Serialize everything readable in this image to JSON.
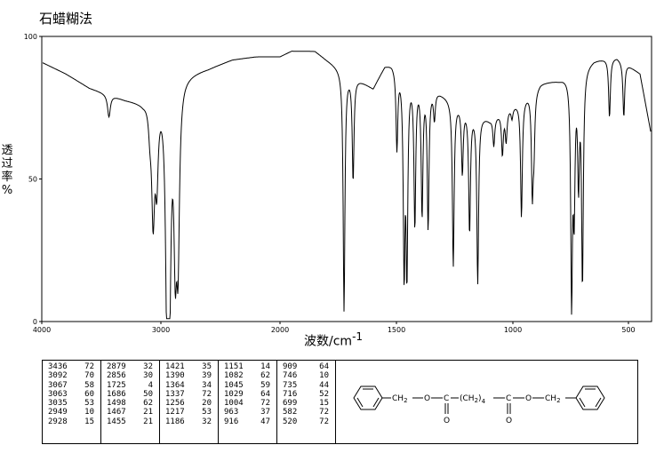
{
  "method_title": "石蜡糊法",
  "chart_data": {
    "type": "line",
    "title": "石蜡糊法",
    "xlabel": "波数/cm",
    "xlabel_superscript": "-1",
    "ylabel": [
      "透",
      "过",
      "率",
      "%"
    ],
    "xlim": [
      4000,
      400
    ],
    "ylim": [
      0,
      100
    ],
    "x_ticks": [
      4000,
      3000,
      2000,
      1500,
      1000,
      500
    ],
    "y_ticks": [
      0,
      50,
      100
    ],
    "grid": false,
    "line_color": "#000000",
    "peaks": [
      {
        "x": 3436,
        "y": 72
      },
      {
        "x": 3092,
        "y": 70
      },
      {
        "x": 3067,
        "y": 58
      },
      {
        "x": 3063,
        "y": 60
      },
      {
        "x": 3035,
        "y": 53
      },
      {
        "x": 2949,
        "y": 10
      },
      {
        "x": 2928,
        "y": 15
      },
      {
        "x": 2879,
        "y": 32
      },
      {
        "x": 2856,
        "y": 30
      },
      {
        "x": 1725,
        "y": 4
      },
      {
        "x": 1686,
        "y": 50
      },
      {
        "x": 1498,
        "y": 62
      },
      {
        "x": 1467,
        "y": 21
      },
      {
        "x": 1455,
        "y": 21
      },
      {
        "x": 1421,
        "y": 35
      },
      {
        "x": 1390,
        "y": 39
      },
      {
        "x": 1364,
        "y": 34
      },
      {
        "x": 1337,
        "y": 72
      },
      {
        "x": 1256,
        "y": 20
      },
      {
        "x": 1217,
        "y": 53
      },
      {
        "x": 1186,
        "y": 32
      },
      {
        "x": 1151,
        "y": 14
      },
      {
        "x": 1082,
        "y": 62
      },
      {
        "x": 1045,
        "y": 59
      },
      {
        "x": 1029,
        "y": 64
      },
      {
        "x": 1004,
        "y": 72
      },
      {
        "x": 963,
        "y": 37
      },
      {
        "x": 916,
        "y": 47
      },
      {
        "x": 909,
        "y": 64
      },
      {
        "x": 746,
        "y": 10
      },
      {
        "x": 735,
        "y": 44
      },
      {
        "x": 716,
        "y": 52
      },
      {
        "x": 699,
        "y": 15
      },
      {
        "x": 582,
        "y": 72
      },
      {
        "x": 520,
        "y": 72
      }
    ],
    "baseline": [
      {
        "x": 4000,
        "y": 91
      },
      {
        "x": 3800,
        "y": 87
      },
      {
        "x": 3600,
        "y": 82
      },
      {
        "x": 3300,
        "y": 78
      },
      {
        "x": 3150,
        "y": 77
      },
      {
        "x": 2800,
        "y": 87
      },
      {
        "x": 2600,
        "y": 89
      },
      {
        "x": 2400,
        "y": 92
      },
      {
        "x": 2200,
        "y": 93
      },
      {
        "x": 2000,
        "y": 93
      },
      {
        "x": 1950,
        "y": 95
      },
      {
        "x": 1850,
        "y": 95
      },
      {
        "x": 1800,
        "y": 92
      },
      {
        "x": 1600,
        "y": 82
      },
      {
        "x": 1550,
        "y": 90
      },
      {
        "x": 1520,
        "y": 91
      },
      {
        "x": 1300,
        "y": 80
      },
      {
        "x": 1100,
        "y": 71
      },
      {
        "x": 980,
        "y": 77
      },
      {
        "x": 880,
        "y": 84
      },
      {
        "x": 800,
        "y": 85
      },
      {
        "x": 650,
        "y": 92
      },
      {
        "x": 550,
        "y": 93
      },
      {
        "x": 450,
        "y": 87
      },
      {
        "x": 400,
        "y": 65
      }
    ]
  },
  "peak_table": [
    [
      [
        "3436",
        "72"
      ],
      [
        "3092",
        "70"
      ],
      [
        "3067",
        "58"
      ],
      [
        "3063",
        "60"
      ],
      [
        "3035",
        "53"
      ],
      [
        "2949",
        "10"
      ],
      [
        "2928",
        "15"
      ]
    ],
    [
      [
        "2879",
        "32"
      ],
      [
        "2856",
        "30"
      ],
      [
        "1725",
        "4"
      ],
      [
        "1686",
        "50"
      ],
      [
        "1498",
        "62"
      ],
      [
        "1467",
        "21"
      ],
      [
        "1455",
        "21"
      ]
    ],
    [
      [
        "1421",
        "35"
      ],
      [
        "1390",
        "39"
      ],
      [
        "1364",
        "34"
      ],
      [
        "1337",
        "72"
      ],
      [
        "1256",
        "20"
      ],
      [
        "1217",
        "53"
      ],
      [
        "1186",
        "32"
      ]
    ],
    [
      [
        "1151",
        "14"
      ],
      [
        "1082",
        "62"
      ],
      [
        "1045",
        "59"
      ],
      [
        "1029",
        "64"
      ],
      [
        "1004",
        "72"
      ],
      [
        "963",
        "37"
      ],
      [
        "916",
        "47"
      ]
    ],
    [
      [
        "909",
        "64"
      ],
      [
        "746",
        "10"
      ],
      [
        "735",
        "44"
      ],
      [
        "716",
        "52"
      ],
      [
        "699",
        "15"
      ],
      [
        "582",
        "72"
      ],
      [
        "520",
        "72"
      ]
    ]
  ],
  "structure": {
    "ch2_left": "CH",
    "ch2_left_sub": "2",
    "o_left": "O",
    "carbonyl_left_c": "C",
    "carbonyl_left_o": "O",
    "chain": "(CH",
    "chain_sub": "2",
    "chain_close": ")",
    "chain_count": "4",
    "carbonyl_right_c": "C",
    "carbonyl_right_o": "O",
    "o_right": "O",
    "ch2_right": "CH",
    "ch2_right_sub": "2"
  }
}
